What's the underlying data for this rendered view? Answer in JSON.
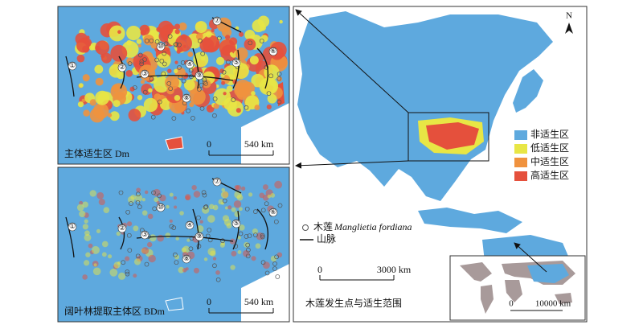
{
  "left_panels": [
    {
      "label": "主体适生区 Dm",
      "scale": {
        "zero": "0",
        "distance": "540 km"
      }
    },
    {
      "label": "阔叶林提取主体区 BDm",
      "scale": {
        "zero": "0",
        "distance": "540 km"
      }
    }
  ],
  "mountain_labels": [
    "①",
    "②",
    "③",
    "④",
    "⑤",
    "⑥",
    "⑦",
    "⑧",
    "⑨",
    "⑩"
  ],
  "main_map": {
    "north": "N",
    "scale": {
      "zero": "0",
      "distance": "3000 km"
    },
    "caption": "木莲发生点与适生范围"
  },
  "legend": {
    "classes": [
      {
        "label": "非适生区",
        "color": "#5ea9de"
      },
      {
        "label": "低适生区",
        "color": "#e8e645"
      },
      {
        "label": "中适生区",
        "color": "#f0923e"
      },
      {
        "label": "高适生区",
        "color": "#e5503c"
      }
    ],
    "occurrence": {
      "common": "木莲",
      "latin": "Manglietia fordiana"
    },
    "mountain": "山脉"
  },
  "world_inset": {
    "scale": {
      "zero": "0",
      "distance": "10000 km"
    }
  }
}
